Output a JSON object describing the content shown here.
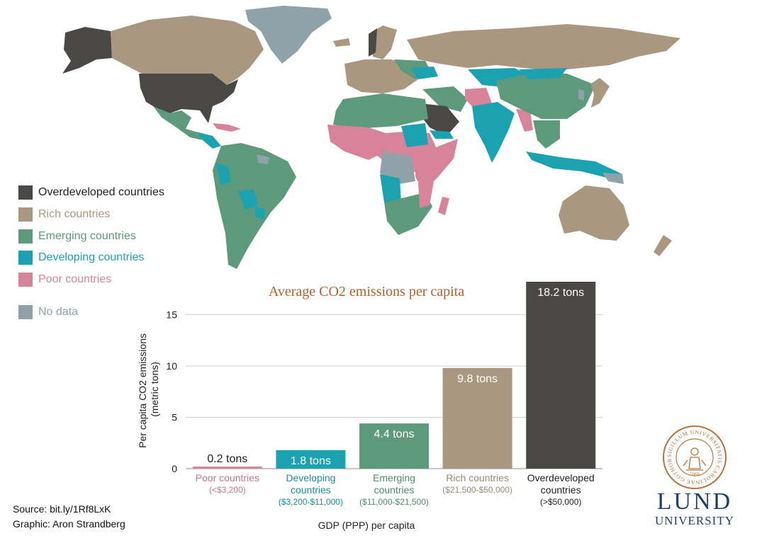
{
  "legend": {
    "items": [
      {
        "label": "Overdeveloped countries",
        "color": "#4a4845"
      },
      {
        "label": "Rich countries",
        "color": "#a9987f"
      },
      {
        "label": "Emerging countries",
        "color": "#5d997b"
      },
      {
        "label": "Developing countries",
        "color": "#1aa2b0"
      },
      {
        "label": "Poor countries",
        "color": "#d7849a"
      }
    ],
    "no_data": {
      "label": "No data",
      "color": "#8fa2a9"
    }
  },
  "chart_data": {
    "type": "bar",
    "title": "Average CO2 emissions per capita",
    "xlabel": "GDP (PPP) per capita",
    "ylabel": "Per capita CO2 emissions (metric tons)",
    "ylabel_lines": [
      "Per capita CO2 emissions",
      "(metric tons)"
    ],
    "ylim": [
      0,
      18.2
    ],
    "yticks": [
      0,
      5,
      10,
      15
    ],
    "grid": true,
    "categories": [
      {
        "name_lines": [
          "Poor countries"
        ],
        "range": "(<$3,200)",
        "value": 0.2,
        "label": "0.2 tons",
        "color": "#d7849a",
        "text_color": "#c9728a"
      },
      {
        "name_lines": [
          "Developing",
          "countries"
        ],
        "range": "($3,200-$11,000)",
        "value": 1.8,
        "label": "1.8 tons",
        "color": "#1aa2b0",
        "text_color": "#168f9e"
      },
      {
        "name_lines": [
          "Emerging",
          "countries"
        ],
        "range": "($11,000-$21,500)",
        "value": 4.4,
        "label": "4.4 tons",
        "color": "#5d997b",
        "text_color": "#4f8a6d"
      },
      {
        "name_lines": [
          "Rich countries"
        ],
        "range": "($21,500-$50,000)",
        "value": 9.8,
        "label": "9.8 tons",
        "color": "#a9987f",
        "text_color": "#9a8a72"
      },
      {
        "name_lines": [
          "Overdeveloped",
          "countries"
        ],
        "range": "(>$50,000)",
        "value": 18.2,
        "label": "18.2 tons",
        "color": "#4a4845",
        "text_color": "#222222"
      }
    ]
  },
  "credits": {
    "source": "Source: bit.ly/1Rf8LxK",
    "graphic": "Graphic: Aron Strandberg"
  },
  "logo": {
    "word": "LUND",
    "sub": "UNIVERSITY",
    "seal_text": "SIGILLUM UNIVERSITATIS CAROLINAE GOTHORUM",
    "year": "1666",
    "color": "#b8743d"
  }
}
